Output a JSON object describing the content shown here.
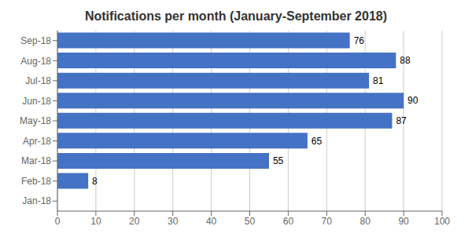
{
  "chart_data": {
    "type": "bar",
    "title": "Notifications per month (January-September 2018)",
    "orientation": "horizontal",
    "categories": [
      "Jan-18",
      "Feb-18",
      "Mar-18",
      "Apr-18",
      "May-18",
      "Jun-18",
      "Jul-18",
      "Aug-18",
      "Sep-18"
    ],
    "values": [
      0,
      8,
      55,
      65,
      87,
      90,
      81,
      88,
      76
    ],
    "color": "#4472C4",
    "xlim": [
      0,
      100
    ],
    "xticks": [
      0,
      10,
      20,
      30,
      40,
      50,
      60,
      70,
      80,
      90,
      100
    ],
    "grid": true,
    "data_labels": true
  }
}
